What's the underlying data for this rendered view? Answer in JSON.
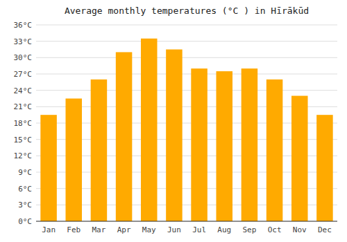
{
  "chart_data": {
    "type": "bar",
    "title": "Average monthly temperatures (°C ) in Hīrākūd",
    "categories": [
      "Jan",
      "Feb",
      "Mar",
      "Apr",
      "May",
      "Jun",
      "Jul",
      "Aug",
      "Sep",
      "Oct",
      "Nov",
      "Dec"
    ],
    "values": [
      19.5,
      22.5,
      26.0,
      31.0,
      33.5,
      31.5,
      28.0,
      27.5,
      28.0,
      26.0,
      23.0,
      19.5
    ],
    "color": "#FFAA00",
    "ylim": [
      0,
      36
    ],
    "yticks": [
      {
        "value": 0,
        "label": "0°C"
      },
      {
        "value": 3,
        "label": "3°C"
      },
      {
        "value": 6,
        "label": "6°C"
      },
      {
        "value": 9,
        "label": "9°C"
      },
      {
        "value": 12,
        "label": "12°C"
      },
      {
        "value": 15,
        "label": "15°C"
      },
      {
        "value": 18,
        "label": "18°C"
      },
      {
        "value": 21,
        "label": "21°C"
      },
      {
        "value": 24,
        "label": "24°C"
      },
      {
        "value": 27,
        "label": "27°C"
      },
      {
        "value": 30,
        "label": "30°C"
      },
      {
        "value": 33,
        "label": "33°C"
      },
      {
        "value": 36,
        "label": "36°C"
      }
    ],
    "grid": true
  }
}
